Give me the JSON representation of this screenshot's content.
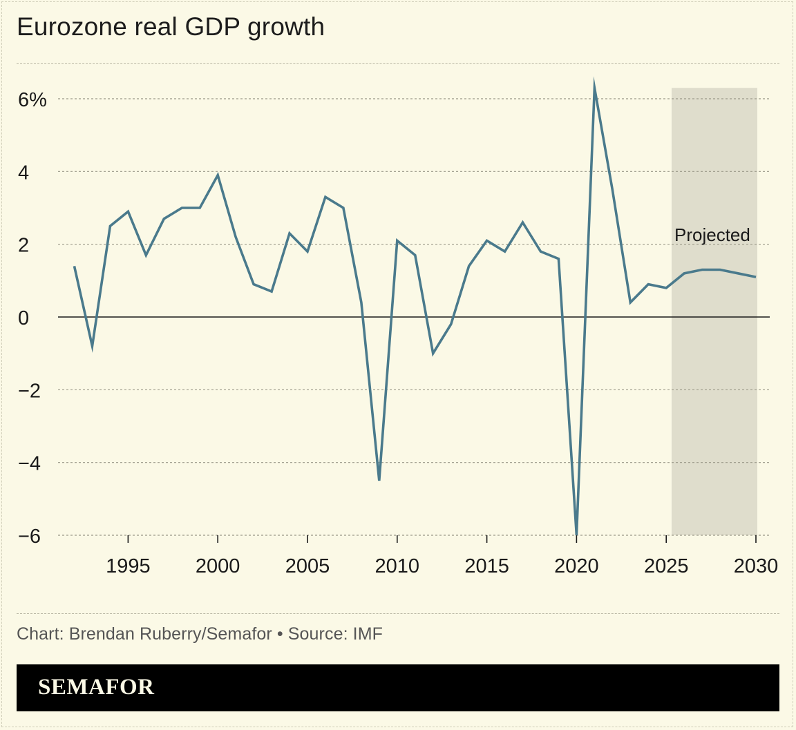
{
  "title": "Eurozone real GDP growth",
  "source": "Chart: Brendan Ruberry/Semafor • Source: IMF",
  "brand": "SEMAFOR",
  "colors": {
    "background": "#fbf9e6",
    "line": "#4a7a8c",
    "projection_band": "#dfddcc",
    "grid": "#9a9888",
    "brand_bar": "#000000",
    "brand_text": "#fbf9e6"
  },
  "chart_data": {
    "type": "line",
    "title": "Eurozone real GDP growth",
    "xlabel": "",
    "ylabel": "",
    "xlim": [
      1992,
      2030
    ],
    "ylim": [
      -6,
      6.3
    ],
    "yticks": [
      -6,
      -4,
      -2,
      0,
      2,
      4,
      6
    ],
    "ytick_labels": [
      "−6",
      "−4",
      "−2",
      "0",
      "2",
      "4",
      "6%"
    ],
    "xticks": [
      1995,
      2000,
      2005,
      2010,
      2015,
      2020,
      2025,
      2030
    ],
    "xtick_labels": [
      "1995",
      "2000",
      "2005",
      "2010",
      "2015",
      "2020",
      "2025",
      "2030"
    ],
    "grid": true,
    "projection": {
      "label": "Projected",
      "start": 2025.3,
      "end": 2030
    },
    "series": [
      {
        "name": "Real GDP growth",
        "x": [
          1992,
          1993,
          1994,
          1995,
          1996,
          1997,
          1998,
          1999,
          2000,
          2001,
          2002,
          2003,
          2004,
          2005,
          2006,
          2007,
          2008,
          2009,
          2010,
          2011,
          2012,
          2013,
          2014,
          2015,
          2016,
          2017,
          2018,
          2019,
          2020,
          2021,
          2022,
          2023,
          2024,
          2025,
          2026,
          2027,
          2028,
          2029,
          2030
        ],
        "values": [
          1.4,
          -0.8,
          2.5,
          2.9,
          1.7,
          2.7,
          3.0,
          3.0,
          3.9,
          2.2,
          0.9,
          0.7,
          2.3,
          1.8,
          3.3,
          3.0,
          0.4,
          -4.5,
          2.1,
          1.7,
          -1.0,
          -0.2,
          1.4,
          2.1,
          1.8,
          2.6,
          1.8,
          1.6,
          -6.0,
          6.3,
          3.5,
          0.4,
          0.9,
          0.8,
          1.2,
          1.3,
          1.3,
          1.2,
          1.1
        ]
      }
    ]
  }
}
